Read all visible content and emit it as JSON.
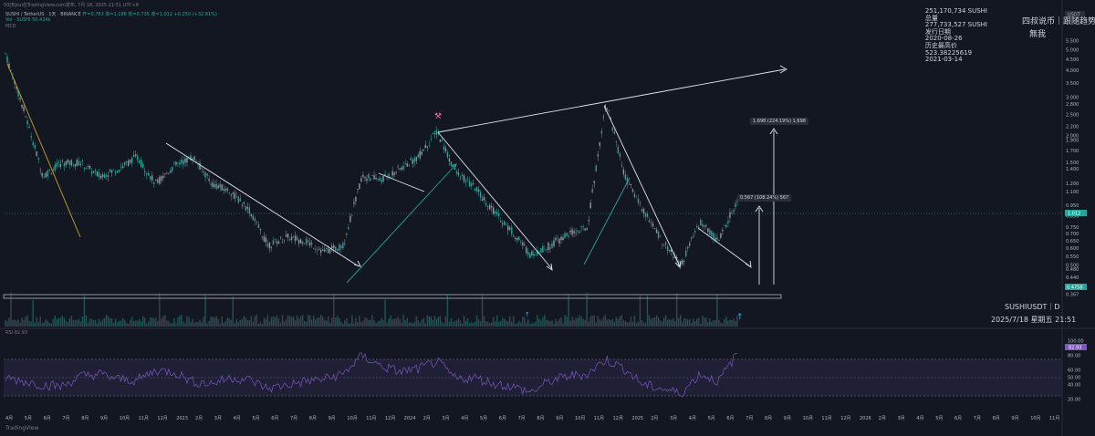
{
  "header": {
    "title": "SUSHI / TetherUS · 1天 · BINANCE",
    "ohlc": "开=0.763 高=1.186 低=0.735 收=1.012 +0.250 (+32.81%)",
    "vol": "Vol · SUSHI 50.424k",
    "ind": "MCD",
    "top_text": "50[B]sui在TradingView.com发布, 7月 18, 2025 21:51 UTC+8"
  },
  "info_lines": [
    "251,170,734 SUSHI",
    "总量",
    "277,733,527 SUSHI",
    "发行日期",
    "2020-08-26",
    "历史最高价",
    "523.38225619",
    "2021-03-14"
  ],
  "watermark": {
    "left": "四叔说币｜跟随趋势",
    "right": "無我"
  },
  "symbol_label": "SUSHIUSDT｜D",
  "date_label": "2025/7/18 星期五 21:51",
  "measure_labels": [
    {
      "text": "1.698 (224.19%) 1,698"
    },
    {
      "text": "0.567 (108.24%) 567"
    }
  ],
  "price_tags": {
    "current": "1.012",
    "support": "0.4758",
    "rsi": "82.93"
  },
  "rsi_label": "RSI 82.93",
  "tv_logo": "TradingView",
  "chart_data": {
    "type": "line",
    "title": "SUSHI / TetherUS · 1天 · BINANCE",
    "price_axis": {
      "scale": "log",
      "currency": "USDT",
      "ticks": [
        5.5,
        5.0,
        4.5,
        4.0,
        3.5,
        3.0,
        2.8,
        2.5,
        2.2,
        2.0,
        1.9,
        1.7,
        1.5,
        1.4,
        1.2,
        1.1,
        0.95,
        0.85,
        0.75,
        0.7,
        0.65,
        0.6,
        0.55,
        0.5,
        0.48,
        0.44,
        0.395,
        0.367
      ]
    },
    "rsi_axis": {
      "range": [
        0,
        100
      ],
      "ticks": [
        100,
        80,
        60,
        50,
        40,
        20
      ],
      "bands": [
        30,
        70
      ]
    },
    "time_axis": {
      "labels": [
        "4月",
        "5月",
        "6月",
        "7月",
        "8月",
        "9月",
        "10月",
        "11月",
        "12月",
        "2023",
        "2月",
        "3月",
        "4月",
        "5月",
        "6月",
        "7月",
        "8月",
        "9月",
        "10月",
        "11月",
        "12月",
        "2024",
        "2月",
        "3月",
        "4月",
        "5月",
        "6月",
        "7月",
        "8月",
        "9月",
        "10月",
        "11月",
        "12月",
        "2025",
        "2月",
        "3月",
        "4月",
        "5月",
        "6月",
        "7月",
        "8月",
        "9月",
        "10月",
        "11月",
        "12月",
        "2026",
        "2月",
        "3月",
        "4月",
        "5月",
        "6月",
        "7月",
        "8月",
        "9月",
        "10月",
        "11月"
      ]
    },
    "price_series_points": [
      [
        "2022-04",
        4.8
      ],
      [
        "2022-05",
        2.6
      ],
      [
        "2022-06",
        1.3
      ],
      [
        "2022-07",
        1.5
      ],
      [
        "2022-08",
        1.5
      ],
      [
        "2022-09",
        1.3
      ],
      [
        "2022-10",
        1.4
      ],
      [
        "2022-11",
        1.6
      ],
      [
        "2022-12",
        1.2
      ],
      [
        "2023-01",
        1.45
      ],
      [
        "2023-02",
        1.6
      ],
      [
        "2023-03",
        1.2
      ],
      [
        "2023-04",
        1.1
      ],
      [
        "2023-05",
        0.9
      ],
      [
        "2023-06",
        0.62
      ],
      [
        "2023-07",
        0.68
      ],
      [
        "2023-08",
        0.65
      ],
      [
        "2023-09",
        0.58
      ],
      [
        "2023-10",
        0.62
      ],
      [
        "2023-11",
        1.3
      ],
      [
        "2023-12",
        1.25
      ],
      [
        "2024-01",
        1.4
      ],
      [
        "2024-02",
        1.6
      ],
      [
        "2024-03",
        2.1
      ],
      [
        "2024-04",
        1.35
      ],
      [
        "2024-05",
        1.15
      ],
      [
        "2024-06",
        0.9
      ],
      [
        "2024-07",
        0.72
      ],
      [
        "2024-08",
        0.56
      ],
      [
        "2024-09",
        0.62
      ],
      [
        "2024-10",
        0.7
      ],
      [
        "2024-11",
        0.75
      ],
      [
        "2024-12",
        2.9
      ],
      [
        "2025-01",
        1.3
      ],
      [
        "2025-02",
        0.9
      ],
      [
        "2025-03",
        0.65
      ],
      [
        "2025-04",
        0.5
      ],
      [
        "2025-05",
        0.8
      ],
      [
        "2025-06",
        0.65
      ],
      [
        "2025-07",
        1.012
      ]
    ],
    "rsi_series_points": [
      50,
      45,
      40,
      38,
      52,
      55,
      48,
      46,
      60,
      58,
      44,
      42,
      50,
      47,
      35,
      40,
      45,
      48,
      55,
      80,
      66,
      58,
      62,
      72,
      48,
      50,
      42,
      38,
      30,
      45,
      52,
      55,
      75,
      62,
      40,
      35,
      28,
      55,
      45,
      82.93
    ],
    "annotations": [
      {
        "type": "measure",
        "label": "1.698 (224.19%) 1,698"
      },
      {
        "type": "measure",
        "label": "0.567 (108.24%) 567"
      }
    ]
  }
}
